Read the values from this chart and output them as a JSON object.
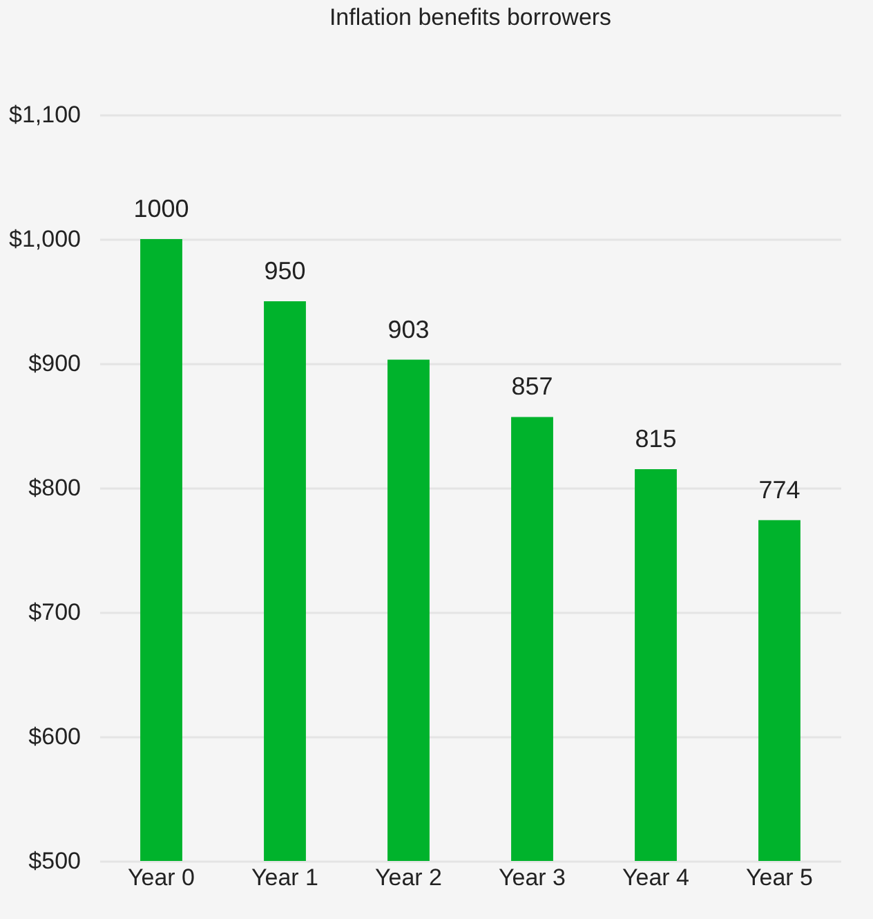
{
  "chart_data": {
    "type": "bar",
    "title": "Inflation benefits borrowers",
    "categories": [
      "Year 0",
      "Year 1",
      "Year 2",
      "Year 3",
      "Year 4",
      "Year 5"
    ],
    "values": [
      1000,
      950,
      903,
      857,
      815,
      774
    ],
    "color": "#00b32c",
    "ylim": [
      500,
      1100
    ],
    "yticks": [
      {
        "value": 500,
        "label": "$500"
      },
      {
        "value": 600,
        "label": "$600"
      },
      {
        "value": 700,
        "label": "$700"
      },
      {
        "value": 800,
        "label": "$800"
      },
      {
        "value": 900,
        "label": "$900"
      },
      {
        "value": 1000,
        "label": "$1,000"
      },
      {
        "value": 1100,
        "label": "$1,100"
      }
    ],
    "grid": true,
    "data_labels": true
  }
}
